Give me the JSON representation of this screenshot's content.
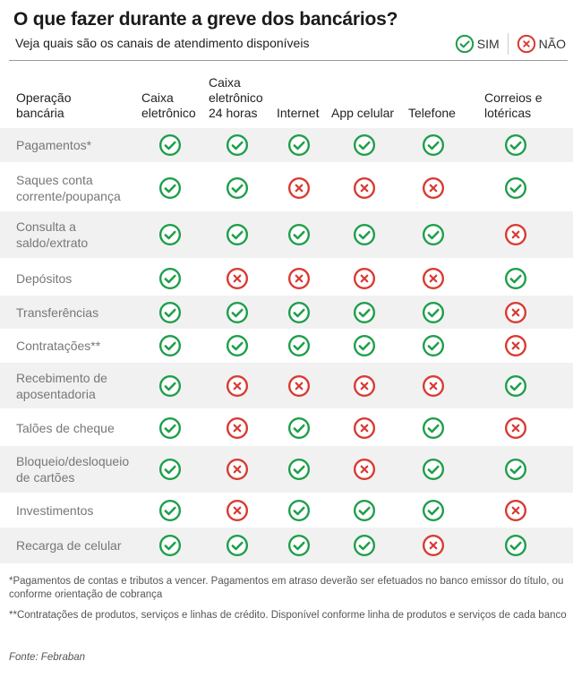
{
  "title": "O que fazer durante a greve dos bancários?",
  "subtitle": "Veja quais são os canais de atendimento disponíveis",
  "legend": {
    "yes": "SIM",
    "no": "NÃO"
  },
  "colors": {
    "yes": "#1e9e4a",
    "no": "#d93a32",
    "row_shade": "#f1f1f1"
  },
  "icons": {
    "yes": "check-circle-icon",
    "no": "x-circle-icon"
  },
  "columns": {
    "label": "Operação bancária",
    "channels": [
      "Caixa eletrônico",
      "Caixa eletrônico 24 horas",
      "Internet",
      "App celular",
      "Telefone",
      "Correios e lotéricas"
    ]
  },
  "rows": [
    {
      "label": "Pagamentos*",
      "values": [
        true,
        true,
        true,
        true,
        true,
        true
      ]
    },
    {
      "label": "Saques conta corrente/poupança",
      "values": [
        true,
        true,
        false,
        false,
        false,
        true
      ]
    },
    {
      "label": "Consulta a saldo/extrato",
      "values": [
        true,
        true,
        true,
        true,
        true,
        false
      ]
    },
    {
      "label": "Depósitos",
      "values": [
        true,
        false,
        false,
        false,
        false,
        true
      ]
    },
    {
      "label": "Transferências",
      "values": [
        true,
        true,
        true,
        true,
        true,
        false
      ]
    },
    {
      "label": "Contratações**",
      "values": [
        true,
        true,
        true,
        true,
        true,
        false
      ]
    },
    {
      "label": "Recebimento de aposentadoria",
      "values": [
        true,
        false,
        false,
        false,
        false,
        true
      ]
    },
    {
      "label": "Talões de cheque",
      "values": [
        true,
        false,
        true,
        false,
        true,
        false
      ]
    },
    {
      "label": "Bloqueio/desloqueio de cartões",
      "values": [
        true,
        false,
        true,
        false,
        true,
        true
      ]
    },
    {
      "label": "Investimentos",
      "values": [
        true,
        false,
        true,
        true,
        true,
        false
      ]
    },
    {
      "label": "Recarga de celular",
      "values": [
        true,
        true,
        true,
        true,
        false,
        true
      ]
    }
  ],
  "footnotes": [
    "*Pagamentos de contas e tributos a vencer. Pagamentos em atraso deverão ser efetuados no banco emissor do título, ou conforme orientação de cobrança",
    "**Contratações de produtos, serviços e linhas de crédito. Disponível conforme linha de produtos e serviços de cada banco"
  ],
  "source": "Fonte: Febraban"
}
